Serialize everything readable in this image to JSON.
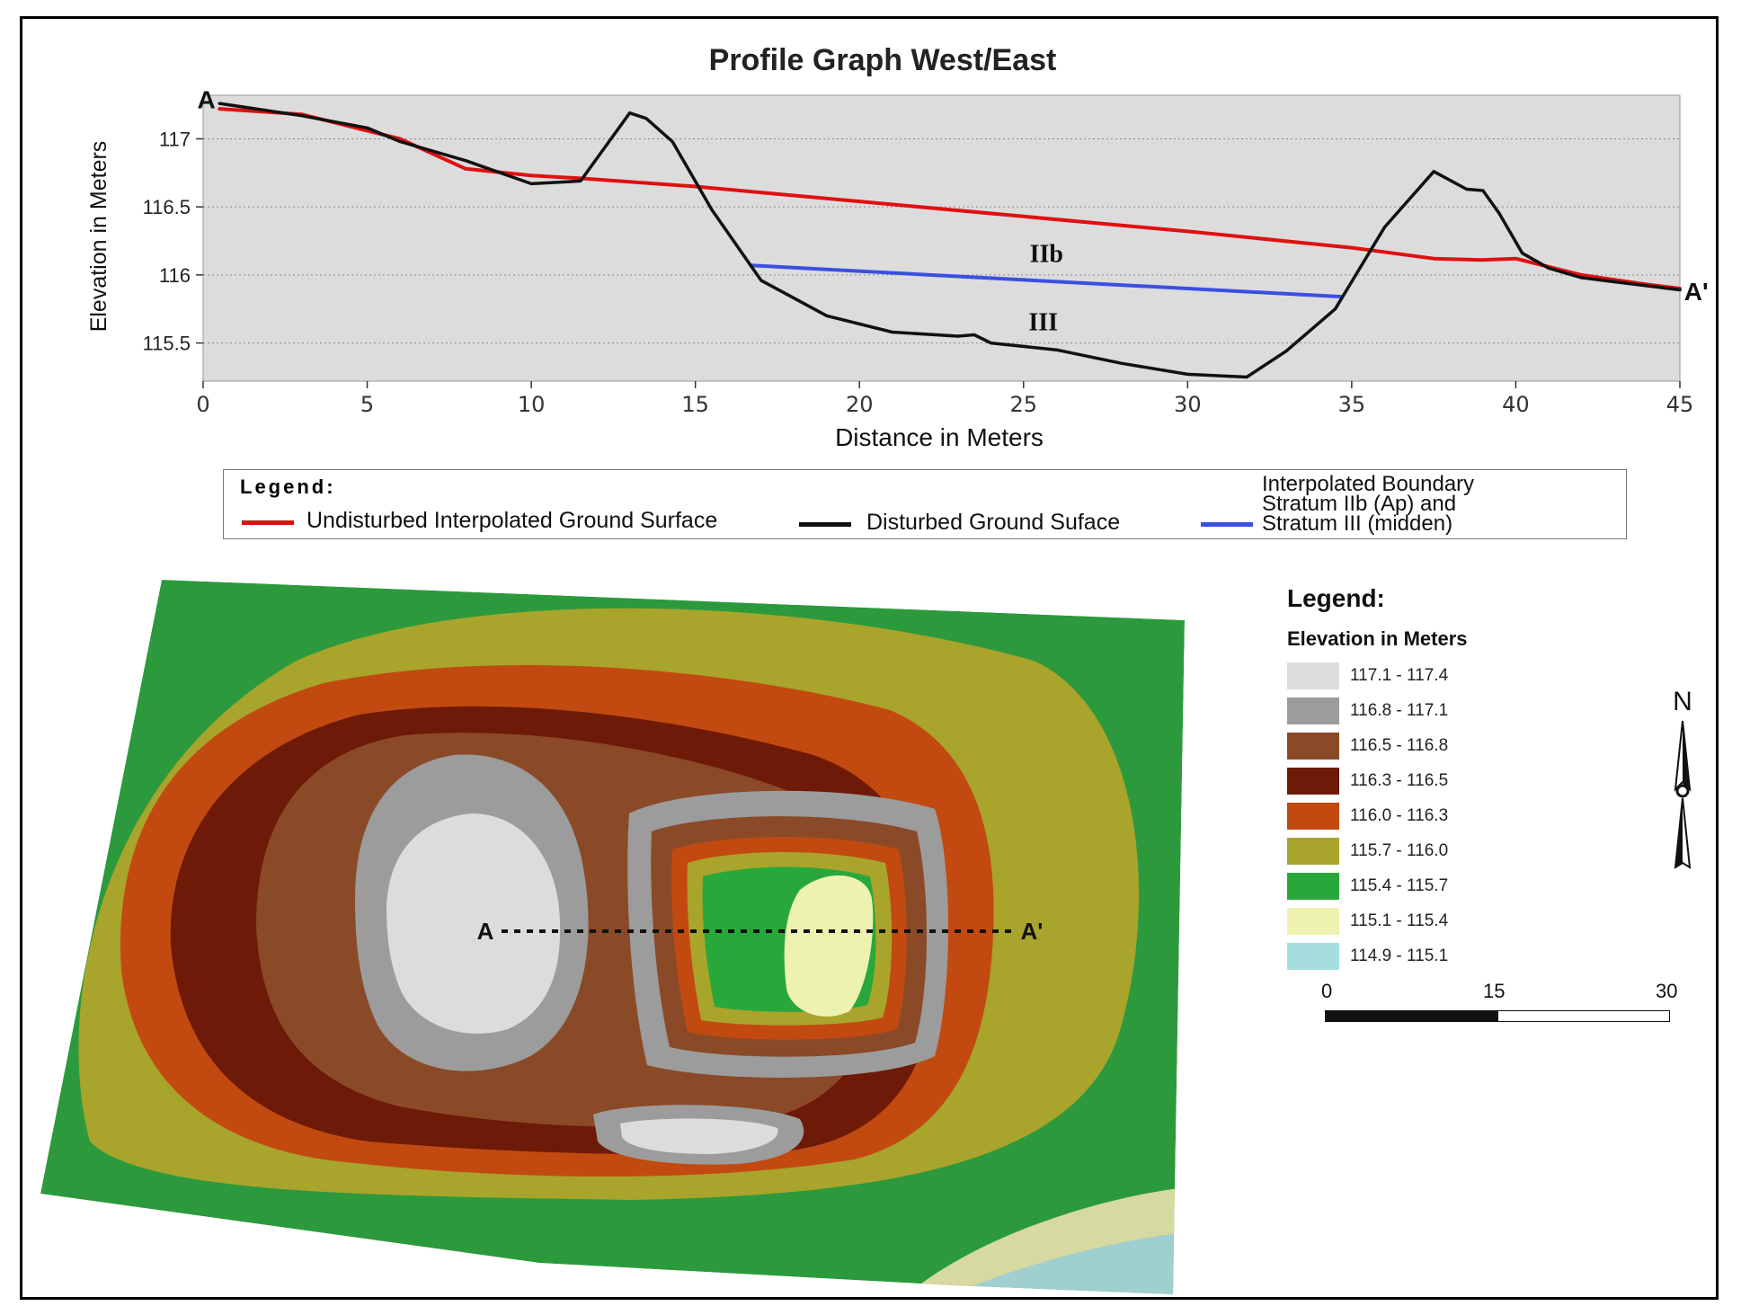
{
  "chart_data": {
    "type": "line",
    "title": "Profile Graph West/East",
    "xlabel": "Distance in Meters",
    "ylabel": "Elevation in Meters",
    "xlim": [
      0,
      45
    ],
    "ylim": [
      115.22,
      117.32
    ],
    "xticks": [
      "0",
      "5",
      "10",
      "15",
      "20",
      "25",
      "30",
      "35",
      "40",
      "45"
    ],
    "yticks": [
      "117",
      "116.5",
      "116",
      "115.5"
    ],
    "ytick_values": [
      117,
      116.5,
      116,
      115.5
    ],
    "grid": true,
    "series": [
      {
        "name": "Undisturbed Interpolated Ground Surface",
        "color": "#e01010",
        "x": [
          0.5,
          3,
          6,
          8,
          10,
          11.5,
          15,
          20,
          25,
          30,
          35,
          37.5,
          39,
          40,
          42,
          44,
          45
        ],
        "y": [
          117.22,
          117.18,
          117.0,
          116.78,
          116.73,
          116.71,
          116.65,
          116.54,
          116.43,
          116.32,
          116.2,
          116.12,
          116.11,
          116.12,
          116.0,
          115.93,
          115.9
        ]
      },
      {
        "name": "Disturbed Ground Suface",
        "color": "#111111",
        "x": [
          0.5,
          3,
          5,
          6,
          8,
          10,
          11.5,
          13,
          13.5,
          14.3,
          15.5,
          17,
          19,
          21,
          23,
          23.5,
          24,
          26,
          28,
          30,
          31.8,
          33,
          34.5,
          36,
          37.5,
          38.5,
          39,
          39.5,
          40.2,
          41,
          42,
          43,
          45
        ],
        "y": [
          117.26,
          117.17,
          117.08,
          116.98,
          116.84,
          116.67,
          116.69,
          117.19,
          117.15,
          116.98,
          116.48,
          115.96,
          115.7,
          115.58,
          115.55,
          115.56,
          115.5,
          115.45,
          115.35,
          115.27,
          115.25,
          115.44,
          115.75,
          116.35,
          116.76,
          116.63,
          116.62,
          116.45,
          116.16,
          116.05,
          115.98,
          115.95,
          115.89
        ]
      },
      {
        "name": "Interpolated Boundary Stratum IIb (Ap) and Stratum III (midden)",
        "color": "#3b4fe0",
        "x": [
          16.7,
          34.7
        ],
        "y": [
          116.07,
          115.84
        ]
      }
    ],
    "annotations": [
      {
        "text": "A",
        "x": 0.1,
        "y": 117.29
      },
      {
        "text": "A'",
        "x": 45.5,
        "y": 115.88
      },
      {
        "text": "IIb",
        "x": 25.7,
        "y": 116.16
      },
      {
        "text": "III",
        "x": 25.6,
        "y": 115.66
      }
    ]
  },
  "profile_legend": {
    "title": "Legend:",
    "items": [
      {
        "label": "Undisturbed Interpolated Ground Surface",
        "color": "#e01010"
      },
      {
        "label": "Disturbed Ground Suface",
        "color": "#111111"
      }
    ],
    "boundary_lines": [
      "Interpolated Boundary",
      "Stratum IIb (Ap) and",
      "Stratum III (midden)"
    ],
    "boundary_color": "#3b4fe0"
  },
  "map": {
    "transect_start": "A",
    "transect_end": "A'",
    "legend_title": "Legend:",
    "legend_subtitle": "Elevation in Meters",
    "classes": [
      {
        "label": "117.1 - 117.4",
        "color": "#dcdcdc"
      },
      {
        "label": "116.8 - 117.1",
        "color": "#9c9c9c"
      },
      {
        "label": "116.5 - 116.8",
        "color": "#8a4a28"
      },
      {
        "label": "116.3 - 116.5",
        "color": "#6e1a08"
      },
      {
        "label": "116.0 - 116.3",
        "color": "#c24a10"
      },
      {
        "label": "115.7 - 116.0",
        "color": "#a9a42c"
      },
      {
        "label": "115.4 - 115.7",
        "color": "#28a83a"
      },
      {
        "label": "115.1 - 115.4",
        "color": "#eef2b0"
      },
      {
        "label": "114.9 - 115.1",
        "color": "#a6dede"
      }
    ],
    "scale": {
      "ticks": [
        "0",
        "15",
        "30"
      ]
    },
    "north": "N"
  }
}
